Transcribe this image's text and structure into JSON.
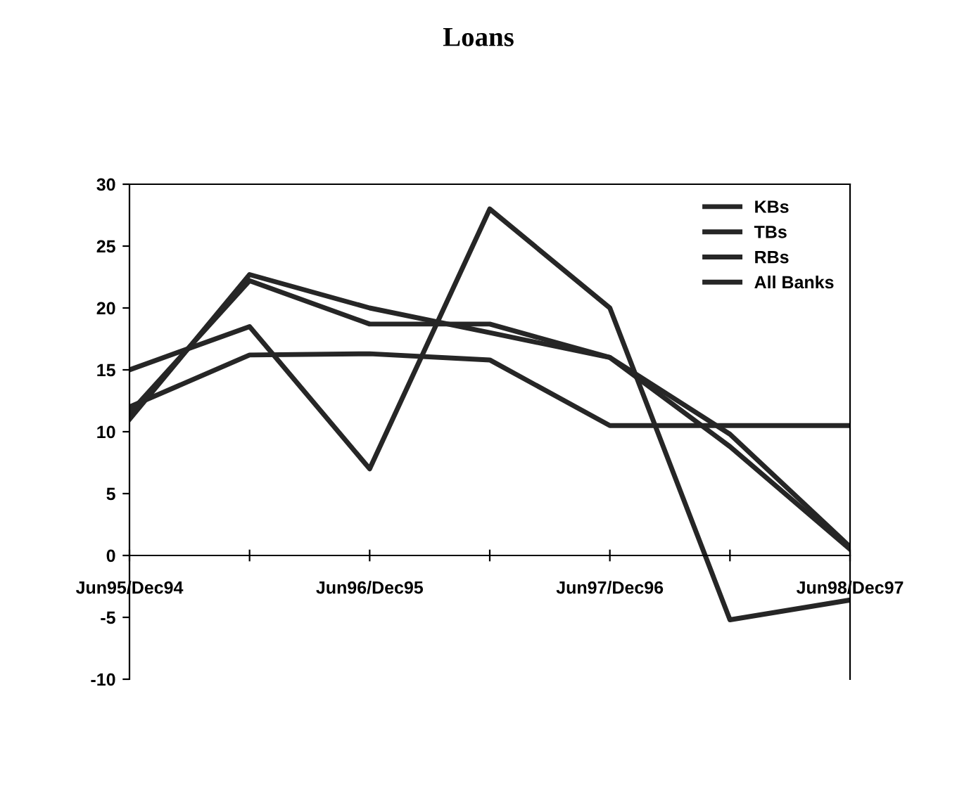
{
  "chart_data": {
    "type": "line",
    "title": "Loans",
    "categories": [
      "Jun95/Dec94",
      null,
      "Jun96/Dec95",
      null,
      "Jun97/Dec96",
      null,
      "Jun98/Dec97"
    ],
    "series": [
      {
        "name": "KBs",
        "color": "#262626",
        "values": [
          15,
          18.5,
          7,
          28,
          20,
          -5.2,
          -3.6
        ]
      },
      {
        "name": "TBs",
        "color": "#262626",
        "values": [
          12,
          16.2,
          16.3,
          15.8,
          10.5,
          10.5,
          10.5
        ]
      },
      {
        "name": "RBs",
        "color": "#262626",
        "values": [
          11,
          22.7,
          20,
          18,
          16,
          8.8,
          0.5
        ]
      },
      {
        "name": "All Banks",
        "color": "#262626",
        "values": [
          11.5,
          22.2,
          18.7,
          18.7,
          16,
          9.8,
          0.7
        ]
      }
    ],
    "ylim": [
      -10,
      30
    ],
    "yticks": [
      -10,
      -5,
      0,
      5,
      10,
      15,
      20,
      25,
      30
    ],
    "grid": false,
    "legend": "top right",
    "marker": "none",
    "line_style": "solid"
  }
}
